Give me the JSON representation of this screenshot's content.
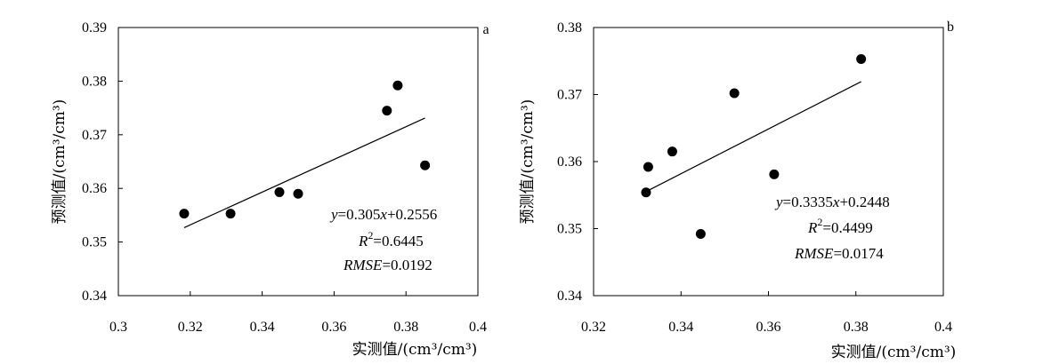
{
  "chart_data": [
    {
      "type": "scatter",
      "panel_label": "a",
      "xlabel": "实测值/(cm³/cm³)",
      "ylabel": "预测值/(cm³/cm³)",
      "xlim": [
        0.3,
        0.4
      ],
      "ylim": [
        0.34,
        0.39
      ],
      "x_ticks": [
        "0.3",
        "0.32",
        "0.34",
        "0.36",
        "0.38",
        "0.4"
      ],
      "y_ticks": [
        "0.34",
        "0.35",
        "0.36",
        "0.37",
        "0.38",
        "0.39"
      ],
      "grid": false,
      "points": {
        "x": [
          0.3183,
          0.3312,
          0.3448,
          0.35,
          0.3747,
          0.3777,
          0.3853
        ],
        "y": [
          0.3553,
          0.3553,
          0.3593,
          0.359,
          0.3745,
          0.3792,
          0.3643
        ]
      },
      "trendline": {
        "slope": 0.305,
        "intercept": 0.2556,
        "x_range": [
          0.3183,
          0.3853
        ]
      },
      "equation": {
        "lhs": "y",
        "rhs": "=0.305",
        "var": "x",
        "tail": "+0.2556"
      },
      "r2": {
        "label": "R",
        "sup": "2",
        "value": "=0.6445"
      },
      "rmse": {
        "label": "RMSE",
        "value": "=0.0192"
      }
    },
    {
      "type": "scatter",
      "panel_label": "b",
      "xlabel": "实测值/(cm³/cm³)",
      "ylabel": "预测值/(cm³/cm³)",
      "xlim": [
        0.32,
        0.4
      ],
      "ylim": [
        0.34,
        0.38
      ],
      "x_ticks": [
        "0.32",
        "0.34",
        "0.36",
        "0.38",
        "0.4"
      ],
      "y_ticks": [
        "0.34",
        "0.35",
        "0.36",
        "0.37",
        "0.38"
      ],
      "grid": false,
      "points": {
        "x": [
          0.332,
          0.3325,
          0.338,
          0.3445,
          0.3522,
          0.3613,
          0.3812
        ],
        "y": [
          0.3554,
          0.3592,
          0.3615,
          0.3492,
          0.3702,
          0.3581,
          0.3753
        ]
      },
      "trendline": {
        "slope": 0.3335,
        "intercept": 0.2448,
        "x_range": [
          0.332,
          0.3812
        ]
      },
      "equation": {
        "lhs": "y",
        "rhs": "=0.3335",
        "var": "x",
        "tail": "+0.2448"
      },
      "r2": {
        "label": "R",
        "sup": "2",
        "value": "=0.4499"
      },
      "rmse": {
        "label": "RMSE",
        "value": "=0.0174"
      }
    }
  ]
}
